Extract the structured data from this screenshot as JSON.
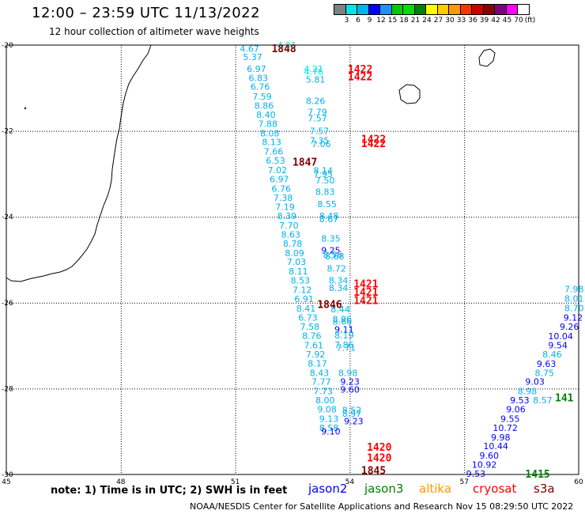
{
  "header": {
    "title": "12:00 – 23:59 UTC 11/13/2022",
    "subtitle": "12 hour collection of altimeter wave heights"
  },
  "colorbar": {
    "labels": [
      "3",
      "6",
      "9",
      "12",
      "15",
      "18",
      "21",
      "24",
      "27",
      "30",
      "33",
      "36",
      "39",
      "42",
      "45",
      "70",
      "(ft)"
    ],
    "colors": [
      "#808080",
      "#00e5e5",
      "#00b2ee",
      "#0000ff",
      "#1e90ff",
      "#00cc00",
      "#00e000",
      "#008000",
      "#ffff00",
      "#ffcc00",
      "#ff9900",
      "#ff3300",
      "#cc0000",
      "#8b0000",
      "#800080",
      "#ff00ff",
      "#ffffff"
    ]
  },
  "map": {
    "lon_ticks": [
      "45",
      "48",
      "51",
      "54",
      "57",
      "60"
    ],
    "lat_ticks": [
      "-20",
      "-22",
      "-24",
      "-26",
      "-28",
      "-30"
    ],
    "readings": [
      {
        "t": "4.67",
        "lon": 51.12,
        "lat": -20.08,
        "c": "#00b2ee"
      },
      {
        "t": "4.91",
        "lon": 52.1,
        "lat": -20.0,
        "c": "#00e5e5"
      },
      {
        "t": "5.37",
        "lon": 51.2,
        "lat": -20.28,
        "c": "#00b2ee"
      },
      {
        "t": "6.97",
        "lon": 51.3,
        "lat": -20.55,
        "c": "#00b2ee"
      },
      {
        "t": "6.83",
        "lon": 51.35,
        "lat": -20.76,
        "c": "#00b2ee"
      },
      {
        "t": "6.76",
        "lon": 51.4,
        "lat": -20.97,
        "c": "#00b2ee"
      },
      {
        "t": "7.59",
        "lon": 51.45,
        "lat": -21.2,
        "c": "#00b2ee"
      },
      {
        "t": "8.86",
        "lon": 51.5,
        "lat": -21.41,
        "c": "#00b2ee"
      },
      {
        "t": "8.40",
        "lon": 51.55,
        "lat": -21.62,
        "c": "#00b2ee"
      },
      {
        "t": "7.88",
        "lon": 51.6,
        "lat": -21.83,
        "c": "#00b2ee"
      },
      {
        "t": "8.08",
        "lon": 51.65,
        "lat": -22.05,
        "c": "#00b2ee"
      },
      {
        "t": "8.13",
        "lon": 51.7,
        "lat": -22.26,
        "c": "#00b2ee"
      },
      {
        "t": "7.66",
        "lon": 51.75,
        "lat": -22.48,
        "c": "#00b2ee"
      },
      {
        "t": "6.53",
        "lon": 51.8,
        "lat": -22.69,
        "c": "#00b2ee"
      },
      {
        "t": "7.02",
        "lon": 51.85,
        "lat": -22.91,
        "c": "#00b2ee"
      },
      {
        "t": "6.97",
        "lon": 51.9,
        "lat": -23.12,
        "c": "#00b2ee"
      },
      {
        "t": "6.76",
        "lon": 51.95,
        "lat": -23.34,
        "c": "#00b2ee"
      },
      {
        "t": "7.38",
        "lon": 52.0,
        "lat": -23.55,
        "c": "#00b2ee"
      },
      {
        "t": "7.19",
        "lon": 52.05,
        "lat": -23.77,
        "c": "#00b2ee"
      },
      {
        "t": "8.39",
        "lon": 52.1,
        "lat": -23.98,
        "c": "#00b2ee"
      },
      {
        "t": "7.70",
        "lon": 52.15,
        "lat": -24.2,
        "c": "#00b2ee"
      },
      {
        "t": "8.63",
        "lon": 52.2,
        "lat": -24.41,
        "c": "#00b2ee"
      },
      {
        "t": "8.78",
        "lon": 52.25,
        "lat": -24.62,
        "c": "#00b2ee"
      },
      {
        "t": "8.09",
        "lon": 52.3,
        "lat": -24.84,
        "c": "#00b2ee"
      },
      {
        "t": "7.03",
        "lon": 52.35,
        "lat": -25.05,
        "c": "#00b2ee"
      },
      {
        "t": "8.11",
        "lon": 52.4,
        "lat": -25.27,
        "c": "#00b2ee"
      },
      {
        "t": "8.53",
        "lon": 52.45,
        "lat": -25.48,
        "c": "#00b2ee"
      },
      {
        "t": "7.12",
        "lon": 52.5,
        "lat": -25.7,
        "c": "#00b2ee"
      },
      {
        "t": "6.91",
        "lon": 52.55,
        "lat": -25.91,
        "c": "#00b2ee"
      },
      {
        "t": "8.41",
        "lon": 52.6,
        "lat": -26.13,
        "c": "#00b2ee"
      },
      {
        "t": "6.73",
        "lon": 52.65,
        "lat": -26.34,
        "c": "#00b2ee"
      },
      {
        "t": "7.58",
        "lon": 52.7,
        "lat": -26.56,
        "c": "#00b2ee"
      },
      {
        "t": "8.76",
        "lon": 52.75,
        "lat": -26.77,
        "c": "#00b2ee"
      },
      {
        "t": "7.61",
        "lon": 52.8,
        "lat": -26.99,
        "c": "#00b2ee"
      },
      {
        "t": "7.92",
        "lon": 52.85,
        "lat": -27.2,
        "c": "#00b2ee"
      },
      {
        "t": "8.17",
        "lon": 52.9,
        "lat": -27.41,
        "c": "#00b2ee"
      },
      {
        "t": "8.43",
        "lon": 52.95,
        "lat": -27.63,
        "c": "#00b2ee"
      },
      {
        "t": "7.77",
        "lon": 53.0,
        "lat": -27.84,
        "c": "#00b2ee"
      },
      {
        "t": "7.73",
        "lon": 53.05,
        "lat": -28.06,
        "c": "#00b2ee"
      },
      {
        "t": "8.00",
        "lon": 53.1,
        "lat": -28.27,
        "c": "#00b2ee"
      },
      {
        "t": "9.08",
        "lon": 53.15,
        "lat": -28.48,
        "c": "#00b2ee"
      },
      {
        "t": "9.13",
        "lon": 53.2,
        "lat": -28.7,
        "c": "#00b2ee"
      },
      {
        "t": "8.58",
        "lon": 53.2,
        "lat": -28.91,
        "c": "#00b2ee"
      },
      {
        "t": "9.10",
        "lon": 53.25,
        "lat": -29.0,
        "c": "#0000ff"
      },
      {
        "t": "4.21",
        "lon": 52.8,
        "lat": -20.55,
        "c": "#00e5e5"
      },
      {
        "t": "4.76",
        "lon": 52.8,
        "lat": -20.62,
        "c": "#00e5e5"
      },
      {
        "t": "5.81",
        "lon": 52.85,
        "lat": -20.8,
        "c": "#00b2ee"
      },
      {
        "t": "8.26",
        "lon": 52.85,
        "lat": -21.3,
        "c": "#00b2ee"
      },
      {
        "t": "7.79",
        "lon": 52.9,
        "lat": -21.56,
        "c": "#00b2ee"
      },
      {
        "t": "7.57",
        "lon": 52.9,
        "lat": -21.7,
        "c": "#00b2ee"
      },
      {
        "t": "7.57",
        "lon": 52.95,
        "lat": -22.0,
        "c": "#00b2ee"
      },
      {
        "t": "7.35",
        "lon": 52.95,
        "lat": -22.22,
        "c": "#00b2ee"
      },
      {
        "t": "7.06",
        "lon": 53.0,
        "lat": -22.3,
        "c": "#00b2ee"
      },
      {
        "t": "8.14",
        "lon": 53.05,
        "lat": -22.92,
        "c": "#00b2ee"
      },
      {
        "t": "7.95",
        "lon": 53.05,
        "lat": -23.0,
        "c": "#00b2ee"
      },
      {
        "t": "7.50",
        "lon": 53.1,
        "lat": -23.15,
        "c": "#00b2ee"
      },
      {
        "t": "8.83",
        "lon": 53.1,
        "lat": -23.42,
        "c": "#00b2ee"
      },
      {
        "t": "8.55",
        "lon": 53.15,
        "lat": -23.7,
        "c": "#00b2ee"
      },
      {
        "t": "8.48",
        "lon": 53.2,
        "lat": -23.98,
        "c": "#00b2ee"
      },
      {
        "t": "8.67",
        "lon": 53.2,
        "lat": -24.05,
        "c": "#00b2ee"
      },
      {
        "t": "8.35",
        "lon": 53.25,
        "lat": -24.5,
        "c": "#00b2ee"
      },
      {
        "t": "9.25",
        "lon": 53.25,
        "lat": -24.78,
        "c": "#0000ff"
      },
      {
        "t": "8.56",
        "lon": 53.3,
        "lat": -24.88,
        "c": "#00b2ee"
      },
      {
        "t": "8.68",
        "lon": 53.35,
        "lat": -24.92,
        "c": "#00b2ee"
      },
      {
        "t": "8.72",
        "lon": 53.4,
        "lat": -25.2,
        "c": "#00b2ee"
      },
      {
        "t": "8.34",
        "lon": 53.45,
        "lat": -25.48,
        "c": "#00b2ee"
      },
      {
        "t": "8.34",
        "lon": 53.45,
        "lat": -25.65,
        "c": "#00b2ee"
      },
      {
        "t": "8.44",
        "lon": 53.5,
        "lat": -26.15,
        "c": "#00b2ee"
      },
      {
        "t": "8.96",
        "lon": 53.55,
        "lat": -26.38,
        "c": "#00b2ee"
      },
      {
        "t": "8.66",
        "lon": 53.55,
        "lat": -26.44,
        "c": "#00b2ee"
      },
      {
        "t": "9.11",
        "lon": 53.6,
        "lat": -26.62,
        "c": "#0000ff"
      },
      {
        "t": "8.19",
        "lon": 53.6,
        "lat": -26.76,
        "c": "#00b2ee"
      },
      {
        "t": "7.86",
        "lon": 53.6,
        "lat": -26.98,
        "c": "#00b2ee"
      },
      {
        "t": "7.71",
        "lon": 53.65,
        "lat": -27.04,
        "c": "#00b2ee"
      },
      {
        "t": "8.98",
        "lon": 53.7,
        "lat": -27.63,
        "c": "#00b2ee"
      },
      {
        "t": "9.23",
        "lon": 53.75,
        "lat": -27.84,
        "c": "#0000ff"
      },
      {
        "t": "9.60",
        "lon": 53.75,
        "lat": -28.02,
        "c": "#0000ff"
      },
      {
        "t": "8.52",
        "lon": 53.8,
        "lat": -28.5,
        "c": "#00b2ee"
      },
      {
        "t": "8.97",
        "lon": 53.8,
        "lat": -28.58,
        "c": "#00b2ee"
      },
      {
        "t": "9.23",
        "lon": 53.85,
        "lat": -28.76,
        "c": "#0000ff"
      },
      {
        "t": "7.98",
        "lon": 59.95,
        "lat": -25.68,
        "c": "#00b2ee"
      },
      {
        "t": "8.01",
        "lon": 59.8,
        "lat": -25.9,
        "c": "#00b2ee"
      },
      {
        "t": "8.70",
        "lon": 59.7,
        "lat": -26.12,
        "c": "#00b2ee"
      },
      {
        "t": "9.12",
        "lon": 59.6,
        "lat": -26.34,
        "c": "#0000ff"
      },
      {
        "t": "9.26",
        "lon": 59.5,
        "lat": -26.56,
        "c": "#0000ff"
      },
      {
        "t": "10.04",
        "lon": 59.2,
        "lat": -26.78,
        "c": "#0000ff"
      },
      {
        "t": "9.54",
        "lon": 59.2,
        "lat": -26.99,
        "c": "#0000ff"
      },
      {
        "t": "8.46",
        "lon": 59.05,
        "lat": -27.2,
        "c": "#00b2ee"
      },
      {
        "t": "9.63",
        "lon": 58.9,
        "lat": -27.42,
        "c": "#0000ff"
      },
      {
        "t": "8.75",
        "lon": 58.85,
        "lat": -27.63,
        "c": "#00b2ee"
      },
      {
        "t": "9.03",
        "lon": 58.6,
        "lat": -27.84,
        "c": "#0000ff"
      },
      {
        "t": "8.98",
        "lon": 58.4,
        "lat": -28.06,
        "c": "#00b2ee"
      },
      {
        "t": "9.53",
        "lon": 58.2,
        "lat": -28.27,
        "c": "#0000ff"
      },
      {
        "t": "8.57",
        "lon": 58.8,
        "lat": -28.27,
        "c": "#00b2ee"
      },
      {
        "t": "9.06",
        "lon": 58.1,
        "lat": -28.48,
        "c": "#0000ff"
      },
      {
        "t": "9.55",
        "lon": 57.95,
        "lat": -28.7,
        "c": "#0000ff"
      },
      {
        "t": "10.72",
        "lon": 57.75,
        "lat": -28.91,
        "c": "#0000ff"
      },
      {
        "t": "9.98",
        "lon": 57.7,
        "lat": -29.13,
        "c": "#0000ff"
      },
      {
        "t": "10.44",
        "lon": 57.5,
        "lat": -29.34,
        "c": "#0000ff"
      },
      {
        "t": "9.60",
        "lon": 57.4,
        "lat": -29.56,
        "c": "#0000ff"
      },
      {
        "t": "10.92",
        "lon": 57.2,
        "lat": -29.77,
        "c": "#0000ff"
      },
      {
        "t": "9.53",
        "lon": 57.05,
        "lat": -29.98,
        "c": "#0000ff"
      }
    ],
    "times": [
      {
        "t": "1848",
        "lon": 51.95,
        "lat": -20.07,
        "c": "#800000"
      },
      {
        "t": "1847",
        "lon": 52.5,
        "lat": -22.72,
        "c": "#800000"
      },
      {
        "t": "1846",
        "lon": 53.15,
        "lat": -26.03,
        "c": "#800000"
      },
      {
        "t": "1845",
        "lon": 54.3,
        "lat": -29.9,
        "c": "#800000"
      },
      {
        "t": "1422",
        "lon": 53.95,
        "lat": -20.55,
        "c": "#ff0000"
      },
      {
        "t": "1422",
        "lon": 53.95,
        "lat": -20.73,
        "c": "#ff0000"
      },
      {
        "t": "1422",
        "lon": 54.3,
        "lat": -22.18,
        "c": "#ff0000"
      },
      {
        "t": "1422",
        "lon": 54.3,
        "lat": -22.28,
        "c": "#ff0000"
      },
      {
        "t": "1421",
        "lon": 54.1,
        "lat": -25.55,
        "c": "#ff0000"
      },
      {
        "t": "1421",
        "lon": 54.1,
        "lat": -25.75,
        "c": "#ff0000"
      },
      {
        "t": "1421",
        "lon": 54.1,
        "lat": -25.94,
        "c": "#ff0000"
      },
      {
        "t": "1420",
        "lon": 54.45,
        "lat": -29.36,
        "c": "#ff0000"
      },
      {
        "t": "1420",
        "lon": 54.45,
        "lat": -29.6,
        "c": "#ff0000"
      },
      {
        "t": "1415",
        "lon": 58.6,
        "lat": -29.98,
        "c": "#008000"
      },
      {
        "t": "141",
        "lon": 59.85,
        "lat": -28.2,
        "c": "#008000"
      }
    ]
  },
  "footer": {
    "note": "note: 1) Time is in UTC; 2) SWH is in feet",
    "legend": [
      {
        "label": "jason2",
        "color": "#0000ff"
      },
      {
        "label": "jason3",
        "color": "#008000"
      },
      {
        "label": "altika",
        "color": "#ff9900"
      },
      {
        "label": "cryosat",
        "color": "#ff0000"
      },
      {
        "label": "s3a",
        "color": "#800000"
      }
    ],
    "credit": "NOAA/NESDIS Center for Satellite Applications and Research   Nov 15 08:29:50 UTC 2022"
  }
}
